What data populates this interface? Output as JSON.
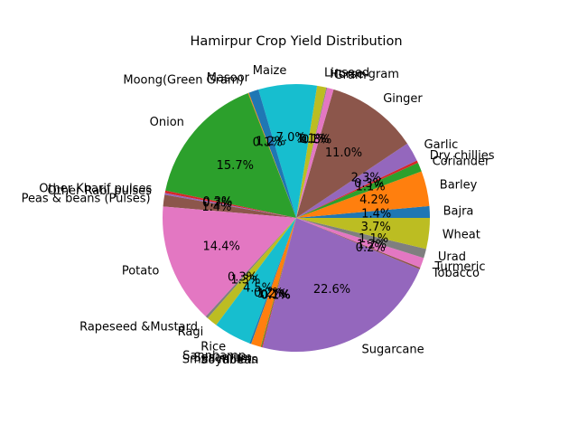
{
  "chart_data": {
    "type": "pie",
    "title": "Hamirpur Crop Yield Distribution",
    "labels": [
      "Bajra",
      "Barley",
      "Coriander",
      "Dry chillies",
      "Garlic",
      "Ginger",
      "Gram",
      "Horse-gram",
      "Linseed",
      "Maize",
      "Masoor",
      "Moong(Green Gram)",
      "Onion",
      "Other Kharif pulses",
      "Other Rabi pulses",
      "Peas & beans (Pulses)",
      "Potato",
      "Rapeseed &Mustard",
      "Ragi",
      "Rice",
      "Sannhamp",
      "Sesamum",
      "Small millets",
      "Soyabean",
      "Sugarcane",
      "Tobacco",
      "Turmeric",
      "Urad",
      "Wheat"
    ],
    "values": [
      1.4,
      4.2,
      1.1,
      0.3,
      2.3,
      11.0,
      0.8,
      0.1,
      1.1,
      7.0,
      1.2,
      0.1,
      15.7,
      0.3,
      0.2,
      1.4,
      14.4,
      0.3,
      1.3,
      4.5,
      0.2,
      1.2,
      0.1,
      0.1,
      22.6,
      0.2,
      1.2,
      1.1,
      3.7
    ],
    "pct_labels": [
      "1.4%",
      "4.2%",
      "1.1%",
      "0.3%",
      "2.3%",
      "11.0%",
      "0.8%",
      "0.1%",
      "1.1%",
      "7.0%",
      "1.2%",
      "0.1%",
      "15.7%",
      "0.3%",
      "0.2%",
      "1.4%",
      "14.4%",
      "0.3%",
      "1.3%",
      "4.5%",
      "0.2%",
      "1.2%",
      "0.1%",
      "0.1%",
      "22.6%",
      "0.2%",
      "1.2%",
      "1.1%",
      "3.7%"
    ],
    "colors": [
      "#1f77b4",
      "#ff7f0e",
      "#2ca02c",
      "#d62728",
      "#9467bd",
      "#8c564b",
      "#e377c2",
      "#7f7f7f",
      "#bcbd22",
      "#17becf"
    ],
    "start_angle_deg": 0,
    "direction": "counterclockwise"
  }
}
